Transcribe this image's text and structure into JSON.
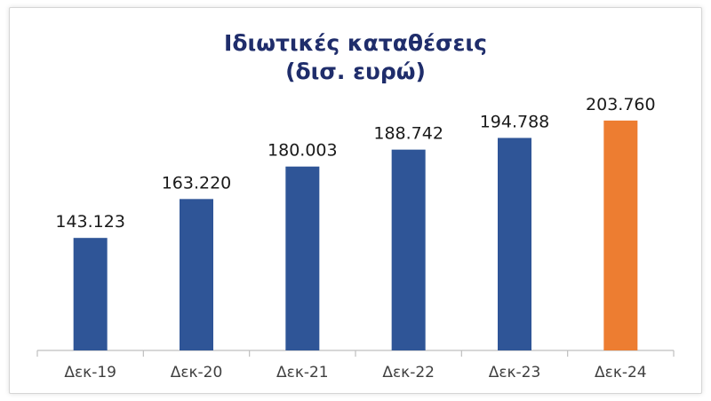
{
  "chart_data": {
    "type": "bar",
    "title": "Ιδιωτικές καταθέσεις",
    "subtitle": "(δισ. ευρώ)",
    "categories": [
      "Δεκ-19",
      "Δεκ-20",
      "Δεκ-21",
      "Δεκ-22",
      "Δεκ-23",
      "Δεκ-24"
    ],
    "values": [
      143.123,
      163.22,
      180.003,
      188.742,
      194.788,
      203.76
    ],
    "value_labels": [
      "143.123",
      "163.220",
      "180.003",
      "188.742",
      "194.788",
      "203.760"
    ],
    "ylim": [
      85,
      206
    ],
    "grid": false,
    "legend": "none",
    "colors": {
      "bar": "#2f5597",
      "highlight_bar": "#ed7d31",
      "highlight_index": 5,
      "title": "#1f2d6b",
      "axis": "#bfbfbf"
    }
  }
}
